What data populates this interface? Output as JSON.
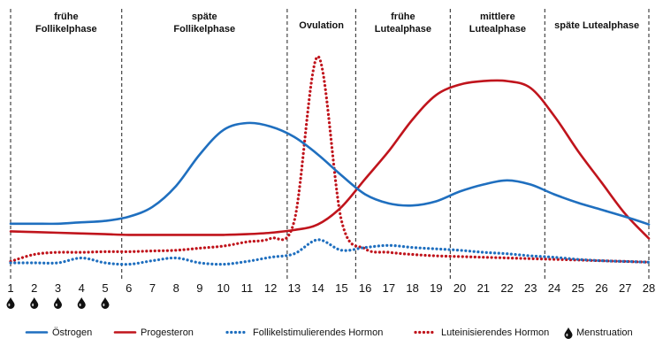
{
  "chart_data": {
    "type": "line",
    "x": [
      1,
      2,
      3,
      4,
      5,
      6,
      7,
      8,
      9,
      10,
      11,
      12,
      13,
      14,
      15,
      16,
      17,
      18,
      19,
      20,
      21,
      22,
      23,
      24,
      25,
      26,
      27,
      28
    ],
    "xlim": [
      1,
      28
    ],
    "grid": false,
    "legend_position": "bottom",
    "phases": [
      {
        "label": [
          "frühe",
          "Follikelphase"
        ],
        "start": 1,
        "end": 5.7
      },
      {
        "label": [
          "späte",
          "Follikelphase"
        ],
        "start": 5.7,
        "end": 12.7
      },
      {
        "label": [
          "Ovulation"
        ],
        "start": 12.7,
        "end": 15.6
      },
      {
        "label": [
          "frühe",
          "Lutealphase"
        ],
        "start": 15.6,
        "end": 19.6
      },
      {
        "label": [
          "mittlere",
          "Lutealphase"
        ],
        "start": 19.6,
        "end": 23.6
      },
      {
        "label": [
          "späte Lutealphase"
        ],
        "start": 23.6,
        "end": 28
      }
    ],
    "phase_boundaries": [
      1,
      5.7,
      12.7,
      15.6,
      19.6,
      23.6,
      28
    ],
    "menstruation_days": [
      1,
      2,
      3,
      4,
      5
    ],
    "series": [
      {
        "name": "Östrogen",
        "color": "#1f6fbf",
        "style": "solid",
        "values": [
          0.56,
          0.56,
          0.56,
          0.58,
          0.6,
          0.66,
          0.8,
          1.1,
          1.55,
          1.9,
          2.0,
          1.95,
          1.8,
          1.55,
          1.25,
          0.98,
          0.85,
          0.82,
          0.88,
          1.02,
          1.12,
          1.18,
          1.12,
          0.98,
          0.86,
          0.76,
          0.66,
          0.55
        ]
      },
      {
        "name": "Progesteron",
        "color": "#c0141c",
        "style": "solid",
        "values": [
          0.45,
          0.44,
          0.43,
          0.42,
          0.41,
          0.4,
          0.4,
          0.4,
          0.4,
          0.4,
          0.41,
          0.43,
          0.47,
          0.55,
          0.8,
          1.2,
          1.6,
          2.05,
          2.4,
          2.55,
          2.6,
          2.6,
          2.5,
          2.1,
          1.6,
          1.15,
          0.7,
          0.35
        ]
      },
      {
        "name": "Follikelstimulierendes Hormon",
        "color": "#1f6fbf",
        "style": "dotted",
        "values": [
          0.0,
          0.0,
          0.0,
          0.07,
          0.0,
          -0.02,
          0.03,
          0.07,
          0.0,
          -0.02,
          0.02,
          0.08,
          0.13,
          0.33,
          0.18,
          0.22,
          0.25,
          0.22,
          0.2,
          0.18,
          0.15,
          0.13,
          0.1,
          0.08,
          0.05,
          0.03,
          0.02,
          0.01
        ]
      },
      {
        "name": "Luteinisierendes Hormon",
        "color": "#c0141c",
        "style": "dotted",
        "values": [
          0.02,
          0.12,
          0.15,
          0.15,
          0.16,
          0.16,
          0.17,
          0.18,
          0.21,
          0.24,
          0.3,
          0.35,
          0.6,
          2.95,
          0.6,
          0.2,
          0.15,
          0.12,
          0.1,
          0.09,
          0.08,
          0.07,
          0.06,
          0.05,
          0.04,
          0.03,
          0.02,
          0.01
        ]
      }
    ],
    "legend": [
      {
        "label": "Östrogen",
        "marker": "solid-blue"
      },
      {
        "label": "Progesteron",
        "marker": "solid-red"
      },
      {
        "label": "Follikelstimulierendes Hormon",
        "marker": "dotted-blue"
      },
      {
        "label": "Luteinisierendes Hormon",
        "marker": "dotted-red"
      },
      {
        "label": "Menstruation",
        "marker": "drop"
      }
    ]
  }
}
